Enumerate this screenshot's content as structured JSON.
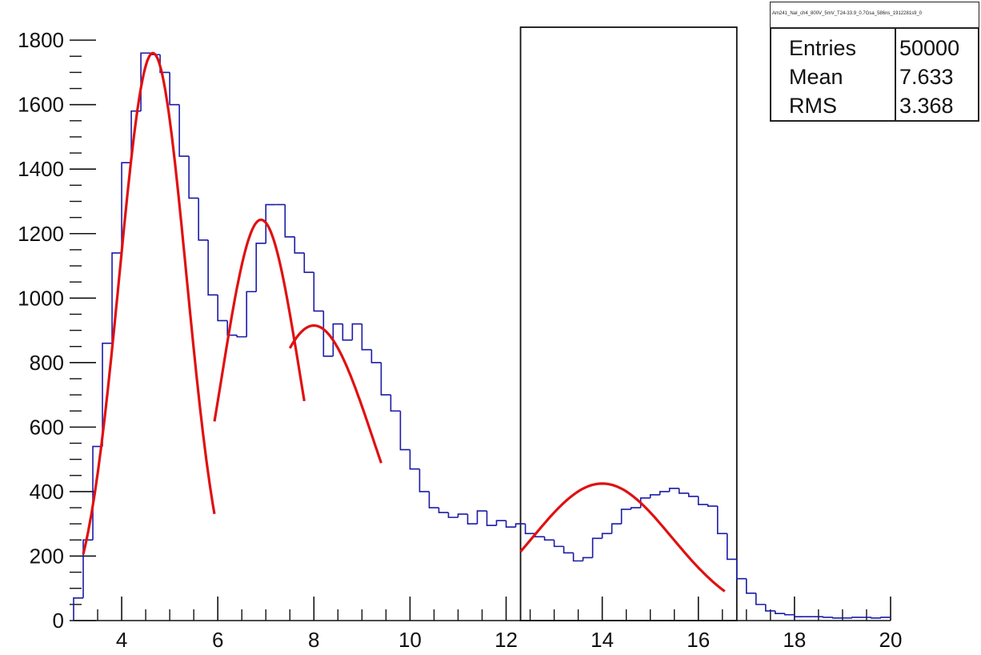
{
  "chart_data": {
    "type": "histogram",
    "title": "",
    "xlabel": "",
    "ylabel": "",
    "xlim": [
      3,
      20
    ],
    "ylim": [
      0,
      1850
    ],
    "x_ticks": [
      "4",
      "6",
      "8",
      "10",
      "12",
      "14",
      "16",
      "18",
      "20"
    ],
    "y_ticks": [
      "0",
      "200",
      "400",
      "600",
      "800",
      "1000",
      "1200",
      "1400",
      "1600",
      "1800"
    ],
    "histogram": {
      "bin_width": 0.2,
      "x_start": 3.0,
      "color": "#1a1aa8",
      "counts": [
        70,
        250,
        540,
        860,
        1140,
        1420,
        1580,
        1760,
        1755,
        1700,
        1600,
        1440,
        1310,
        1180,
        1010,
        930,
        885,
        880,
        1020,
        1170,
        1290,
        1290,
        1190,
        1140,
        1080,
        960,
        820,
        920,
        870,
        920,
        840,
        800,
        700,
        650,
        530,
        470,
        400,
        350,
        335,
        320,
        330,
        300,
        340,
        295,
        310,
        290,
        300,
        270,
        260,
        250,
        230,
        210,
        185,
        195,
        255,
        270,
        300,
        345,
        350,
        380,
        390,
        400,
        410,
        395,
        385,
        360,
        355,
        270,
        190,
        130,
        85,
        50,
        30,
        22,
        18,
        12,
        12,
        12,
        10,
        8,
        8,
        10,
        10,
        8,
        10
      ]
    },
    "fits": [
      {
        "type": "gaussian",
        "amplitude": 1760,
        "mean": 4.65,
        "sigma": 0.7,
        "x_range": [
          3.2,
          5.93
        ],
        "color": "#e01010"
      },
      {
        "type": "gaussian",
        "amplitude": 1243,
        "mean": 6.9,
        "sigma": 0.82,
        "x_range": [
          5.93,
          7.8
        ],
        "color": "#e01010"
      },
      {
        "type": "gaussian",
        "amplitude": 915,
        "mean": 8.0,
        "sigma": 1.25,
        "x_range": [
          7.5,
          9.4
        ],
        "color": "#e01010"
      },
      {
        "type": "gaussian",
        "amplitude": 425,
        "mean": 14.0,
        "sigma": 1.45,
        "x_range": [
          12.3,
          16.55
        ],
        "color": "#e01010"
      }
    ],
    "selection_box": {
      "x_range": [
        12.3,
        16.8
      ]
    },
    "stats": {
      "title": "Am241_NaI_ch4_800V_5mV_T24-33.9_0.7Gsa_586ns_1912281s9_0",
      "rows": [
        {
          "label": "Entries",
          "value": "50000"
        },
        {
          "label": "Mean",
          "value": "7.633"
        },
        {
          "label": "RMS",
          "value": "3.368"
        }
      ]
    }
  }
}
